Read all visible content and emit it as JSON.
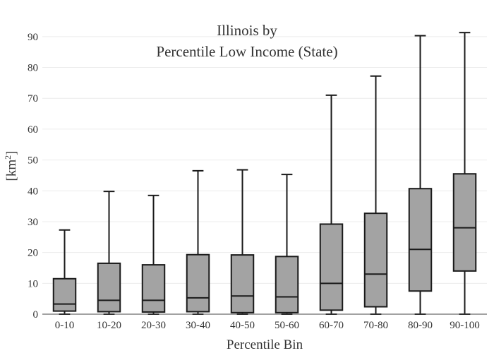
{
  "chart_data": {
    "type": "box",
    "title_lines": [
      "Illinois  by",
      "Percentile Low Income (State)"
    ],
    "xlabel": "Percentile Bin",
    "ylabel_base": "[km",
    "ylabel_sup": "2",
    "ylabel_close": "]",
    "ylim": [
      0,
      95
    ],
    "yticks": [
      0,
      10,
      20,
      30,
      40,
      50,
      60,
      70,
      80,
      90
    ],
    "grid": true,
    "categories": [
      "0-10",
      "10-20",
      "20-30",
      "30-40",
      "40-50",
      "50-60",
      "60-70",
      "70-80",
      "80-90",
      "90-100"
    ],
    "boxes": [
      {
        "min": 0,
        "q1": 1.0,
        "median": 3.3,
        "q3": 11.5,
        "max": 27.3
      },
      {
        "min": 0,
        "q1": 0.8,
        "median": 4.5,
        "q3": 16.5,
        "max": 39.8
      },
      {
        "min": 0,
        "q1": 0.7,
        "median": 4.5,
        "q3": 16.0,
        "max": 38.5
      },
      {
        "min": 0,
        "q1": 0.8,
        "median": 5.3,
        "q3": 19.3,
        "max": 46.5
      },
      {
        "min": 0,
        "q1": 0.5,
        "median": 5.9,
        "q3": 19.2,
        "max": 46.8
      },
      {
        "min": 0,
        "q1": 0.5,
        "median": 5.6,
        "q3": 18.7,
        "max": 45.3
      },
      {
        "min": 0,
        "q1": 1.3,
        "median": 10.0,
        "q3": 29.2,
        "max": 71.0
      },
      {
        "min": 0,
        "q1": 2.4,
        "median": 13.0,
        "q3": 32.7,
        "max": 77.2
      },
      {
        "min": 0,
        "q1": 7.5,
        "median": 21.0,
        "q3": 40.7,
        "max": 90.3
      },
      {
        "min": 0,
        "q1": 14.0,
        "median": 28.0,
        "q3": 45.5,
        "max": 91.3
      }
    ],
    "colors": {
      "box_fill": "#a3a3a3",
      "line": "#1a1a1a",
      "grid": "#ececec",
      "text": "#333333"
    }
  }
}
